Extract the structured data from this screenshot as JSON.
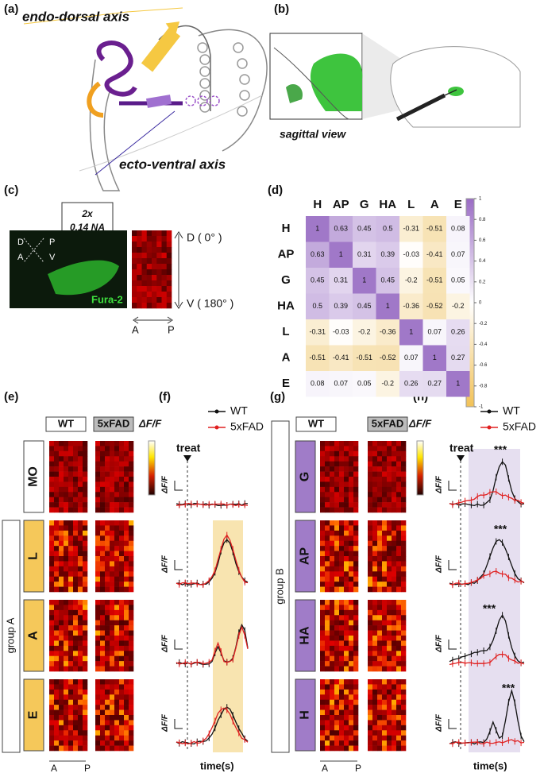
{
  "a": {
    "label": "(a)",
    "top_axis": "endo-dorsal axis",
    "bottom_axis": "ecto-ventral axis"
  },
  "b": {
    "label": "(b)",
    "view": "sagittal view"
  },
  "c": {
    "label": "(c)",
    "magnification": "2x",
    "aperture": "0.14 NA",
    "compass": [
      "D",
      "P",
      "A",
      "V"
    ],
    "dye": "Fura-2",
    "dorsal": "D ( 0° )",
    "ventral": "V ( 180° )",
    "anterior": "A",
    "posterior": "P"
  },
  "d": {
    "label": "(d)",
    "regions": [
      "H",
      "AP",
      "G",
      "HA",
      "L",
      "A",
      "E"
    ],
    "matrix": [
      [
        1,
        0.63,
        0.45,
        0.5,
        -0.31,
        -0.51,
        0.08
      ],
      [
        0.63,
        1,
        0.31,
        0.39,
        -0.03,
        -0.41,
        0.07
      ],
      [
        0.45,
        0.31,
        1,
        0.45,
        -0.2,
        -0.51,
        0.05
      ],
      [
        0.5,
        0.39,
        0.45,
        1,
        -0.36,
        -0.52,
        -0.2
      ],
      [
        -0.31,
        -0.03,
        -0.2,
        -0.36,
        1,
        0.07,
        0.26
      ],
      [
        -0.51,
        -0.41,
        -0.51,
        -0.52,
        0.07,
        1,
        0.27
      ],
      [
        0.08,
        0.07,
        0.05,
        -0.2,
        0.26,
        0.27,
        1
      ]
    ],
    "colorbar_ticks": [
      1,
      0.8,
      0.6,
      0.4,
      0.2,
      0,
      -0.2,
      -0.4,
      -0.6,
      -0.8,
      -1
    ]
  },
  "e": {
    "label": "(e)",
    "wt": "WT",
    "fad": "5xFAD",
    "scale": "ΔF/F",
    "regions": [
      "MO",
      "L",
      "A",
      "E"
    ],
    "group": "group A",
    "anterior": "A",
    "posterior": "P"
  },
  "f": {
    "label": "(f)",
    "legend": [
      "WT",
      "5xFAD"
    ],
    "treat": "treat",
    "y_labels": [
      "ΔF/F",
      "ΔF/F",
      "ΔF/F",
      "ΔF/F"
    ],
    "x_label": "time(s)"
  },
  "g": {
    "label": "(g)",
    "wt": "WT",
    "fad": "5xFAD",
    "scale": "ΔF/F",
    "regions": [
      "G",
      "AP",
      "HA",
      "H"
    ],
    "group": "group B",
    "anterior": "A",
    "posterior": "P"
  },
  "h": {
    "label": "(h)",
    "legend": [
      "WT",
      "5xFAD"
    ],
    "treat": "treat",
    "y_labels": [
      "ΔF/F",
      "ΔF/F",
      "ΔF/F",
      "ΔF/F"
    ],
    "significance": [
      "***",
      "***",
      "***",
      "***"
    ],
    "x_label": "time(s)"
  }
}
